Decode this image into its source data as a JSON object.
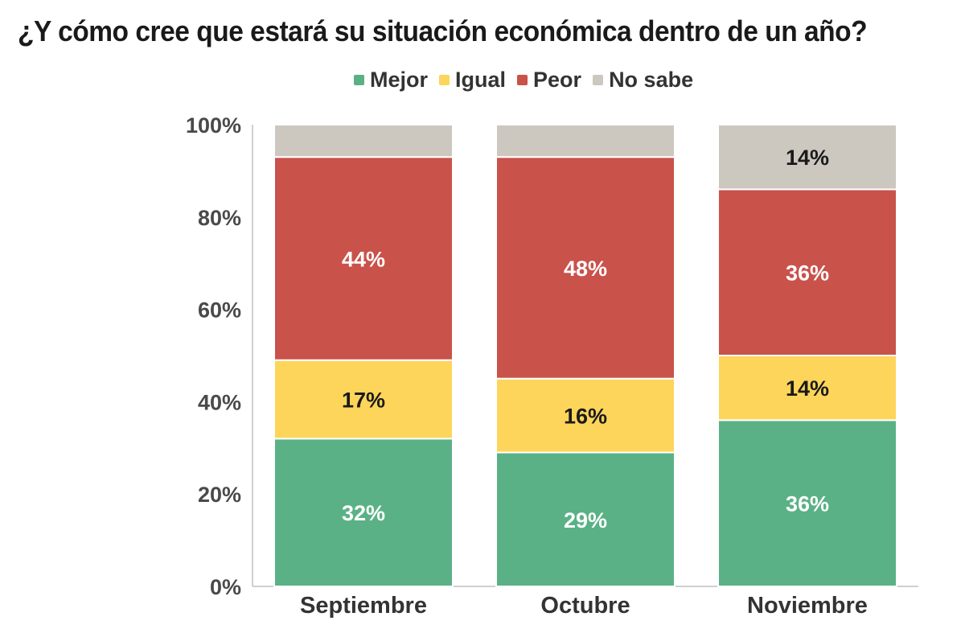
{
  "chart_data": {
    "type": "bar",
    "stacked": true,
    "percent": true,
    "title": "¿Y cómo cree que estará su situación económica dentro de un año?",
    "categories": [
      "Septiembre",
      "Octubre",
      "Noviembre"
    ],
    "series": [
      {
        "name": "Mejor",
        "color": "#5ab186",
        "values": [
          32,
          29,
          36
        ],
        "labels": [
          "32%",
          "29%",
          "36%"
        ],
        "label_color": "#ffffff"
      },
      {
        "name": "Igual",
        "color": "#fdd55a",
        "values": [
          17,
          16,
          14
        ],
        "labels": [
          "17%",
          "16%",
          "14%"
        ],
        "label_color": "#1a1a1a"
      },
      {
        "name": "Peor",
        "color": "#c9524b",
        "values": [
          44,
          48,
          36
        ],
        "labels": [
          "44%",
          "48%",
          "36%"
        ],
        "label_color": "#ffffff"
      },
      {
        "name": "No sabe",
        "color": "#ccc7bf",
        "values": [
          7,
          7,
          14
        ],
        "labels": [
          "",
          "",
          "14%"
        ],
        "label_color": "#1a1a1a"
      }
    ],
    "ylim": [
      0,
      100
    ],
    "yticks": [
      0,
      20,
      40,
      60,
      80,
      100
    ],
    "ytick_labels": [
      "0%",
      "20%",
      "40%",
      "60%",
      "80%",
      "100%"
    ],
    "xlabel": "",
    "ylabel": "",
    "legend_position": "top-center",
    "grid": false
  }
}
